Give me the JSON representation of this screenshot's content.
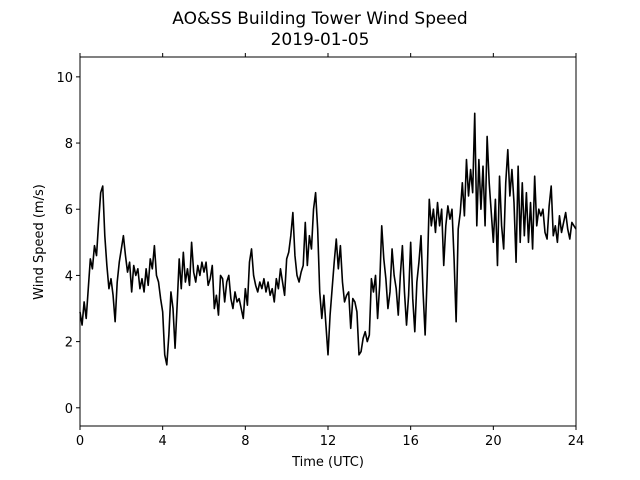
{
  "chart_data": {
    "type": "line",
    "title": "AO&SS Building Tower Wind Speed",
    "subtitle": "2019-01-05",
    "x_label": "Time (UTC)",
    "y_label": "Wind Speed (m/s)",
    "xlim": [
      0,
      24
    ],
    "ylim": [
      -0.55,
      10.6
    ],
    "xticks": [
      0,
      4,
      8,
      12,
      16,
      20,
      24
    ],
    "yticks": [
      0,
      2,
      4,
      6,
      8,
      10
    ],
    "grid": false,
    "x": [
      0,
      0.1,
      0.2,
      0.3,
      0.4,
      0.5,
      0.6,
      0.7,
      0.8,
      0.9,
      1,
      1.1,
      1.2,
      1.3,
      1.4,
      1.5,
      1.6,
      1.7,
      1.8,
      1.9,
      2,
      2.1,
      2.2,
      2.3,
      2.4,
      2.5,
      2.6,
      2.7,
      2.8,
      2.9,
      3,
      3.1,
      3.2,
      3.3,
      3.4,
      3.5,
      3.6,
      3.7,
      3.8,
      3.9,
      4,
      4.1,
      4.2,
      4.3,
      4.4,
      4.5,
      4.6,
      4.7,
      4.8,
      4.9,
      5,
      5.1,
      5.2,
      5.3,
      5.4,
      5.5,
      5.6,
      5.7,
      5.8,
      5.9,
      6,
      6.1,
      6.2,
      6.3,
      6.4,
      6.5,
      6.6,
      6.7,
      6.8,
      6.9,
      7,
      7.1,
      7.2,
      7.3,
      7.4,
      7.5,
      7.6,
      7.7,
      7.8,
      7.9,
      8,
      8.1,
      8.2,
      8.3,
      8.4,
      8.5,
      8.6,
      8.7,
      8.8,
      8.9,
      9,
      9.1,
      9.2,
      9.3,
      9.4,
      9.5,
      9.6,
      9.7,
      9.8,
      9.9,
      10,
      10.1,
      10.2,
      10.3,
      10.4,
      10.5,
      10.6,
      10.7,
      10.8,
      10.9,
      11,
      11.1,
      11.2,
      11.3,
      11.4,
      11.5,
      11.6,
      11.7,
      11.8,
      11.9,
      12,
      12.1,
      12.2,
      12.3,
      12.4,
      12.5,
      12.6,
      12.7,
      12.8,
      12.9,
      13,
      13.1,
      13.2,
      13.3,
      13.4,
      13.5,
      13.6,
      13.7,
      13.8,
      13.9,
      14,
      14.1,
      14.2,
      14.3,
      14.4,
      14.5,
      14.6,
      14.7,
      14.8,
      14.9,
      15,
      15.1,
      15.2,
      15.3,
      15.4,
      15.5,
      15.6,
      15.7,
      15.8,
      15.9,
      16,
      16.1,
      16.2,
      16.3,
      16.4,
      16.5,
      16.6,
      16.7,
      16.8,
      16.9,
      17,
      17.1,
      17.2,
      17.3,
      17.4,
      17.5,
      17.6,
      17.7,
      17.8,
      17.9,
      18,
      18.1,
      18.2,
      18.3,
      18.4,
      18.5,
      18.6,
      18.7,
      18.8,
      18.9,
      19,
      19.1,
      19.2,
      19.3,
      19.4,
      19.5,
      19.6,
      19.7,
      19.8,
      19.9,
      20,
      20.1,
      20.2,
      20.3,
      20.4,
      20.5,
      20.6,
      20.7,
      20.8,
      20.9,
      21,
      21.1,
      21.2,
      21.3,
      21.4,
      21.5,
      21.6,
      21.7,
      21.8,
      21.9,
      22,
      22.1,
      22.2,
      22.3,
      22.4,
      22.5,
      22.6,
      22.7,
      22.8,
      22.9,
      23,
      23.1,
      23.2,
      23.3,
      23.4,
      23.5,
      23.6,
      23.7,
      23.8,
      23.9,
      24
    ],
    "series": [
      {
        "name": "Wind Speed",
        "color": "#000000",
        "values": [
          2.9,
          2.5,
          3.2,
          2.7,
          3.6,
          4.5,
          4.2,
          4.9,
          4.6,
          5.6,
          6.5,
          6.7,
          5.2,
          4.3,
          3.6,
          3.9,
          3.4,
          2.6,
          3.8,
          4.4,
          4.8,
          5.2,
          4.6,
          4.1,
          4.4,
          3.5,
          4.3,
          4.0,
          4.2,
          3.6,
          3.9,
          3.5,
          4.2,
          3.7,
          4.5,
          4.2,
          4.9,
          4.0,
          3.8,
          3.3,
          2.9,
          1.6,
          1.3,
          2.2,
          3.5,
          3.0,
          1.8,
          3.1,
          4.5,
          3.6,
          4.7,
          3.8,
          4.2,
          3.7,
          5.0,
          4.1,
          3.8,
          4.3,
          4.0,
          4.4,
          4.1,
          4.4,
          3.7,
          3.9,
          4.3,
          3.0,
          3.4,
          2.8,
          4.0,
          3.9,
          3.2,
          3.8,
          4.0,
          3.3,
          3.0,
          3.5,
          3.2,
          3.3,
          3.0,
          2.7,
          3.6,
          3.1,
          4.4,
          4.8,
          4.0,
          3.7,
          3.5,
          3.8,
          3.6,
          3.9,
          3.5,
          3.8,
          3.4,
          3.6,
          3.2,
          3.9,
          3.6,
          4.2,
          3.8,
          3.4,
          4.5,
          4.7,
          5.2,
          5.9,
          4.6,
          4.0,
          3.8,
          4.1,
          4.3,
          5.6,
          4.3,
          5.2,
          4.8,
          6.0,
          6.5,
          5.4,
          3.5,
          2.7,
          3.4,
          2.5,
          1.6,
          2.8,
          3.6,
          4.4,
          5.1,
          4.2,
          4.9,
          3.8,
          3.2,
          3.4,
          3.5,
          2.4,
          3.3,
          3.2,
          2.9,
          1.6,
          1.7,
          2.1,
          2.3,
          2.0,
          2.2,
          3.9,
          3.5,
          4.0,
          2.7,
          3.7,
          5.5,
          4.5,
          3.9,
          3.0,
          3.5,
          4.8,
          4.0,
          3.6,
          2.8,
          4.0,
          4.9,
          3.5,
          2.5,
          3.4,
          5.0,
          3.3,
          2.3,
          3.8,
          4.4,
          5.2,
          3.5,
          2.2,
          4.0,
          6.3,
          5.5,
          6.0,
          5.3,
          6.2,
          5.5,
          6.0,
          4.3,
          5.5,
          6.1,
          5.7,
          6.0,
          4.5,
          2.6,
          5.4,
          5.9,
          6.8,
          5.8,
          7.5,
          6.4,
          7.2,
          6.5,
          8.9,
          5.5,
          7.5,
          6.0,
          7.3,
          5.5,
          8.2,
          6.8,
          5.9,
          5.0,
          6.3,
          4.3,
          7.0,
          5.5,
          4.8,
          6.8,
          7.8,
          6.4,
          7.2,
          6.2,
          4.4,
          7.3,
          5.0,
          6.8,
          5.2,
          6.5,
          5.0,
          6.2,
          4.8,
          7.0,
          5.5,
          6.0,
          5.8,
          6.0,
          5.3,
          5.1,
          6.1,
          6.7,
          5.2,
          5.5,
          5.0,
          5.8,
          5.3,
          5.6,
          5.9,
          5.4,
          5.1,
          5.6,
          5.5,
          5.4
        ]
      }
    ]
  }
}
